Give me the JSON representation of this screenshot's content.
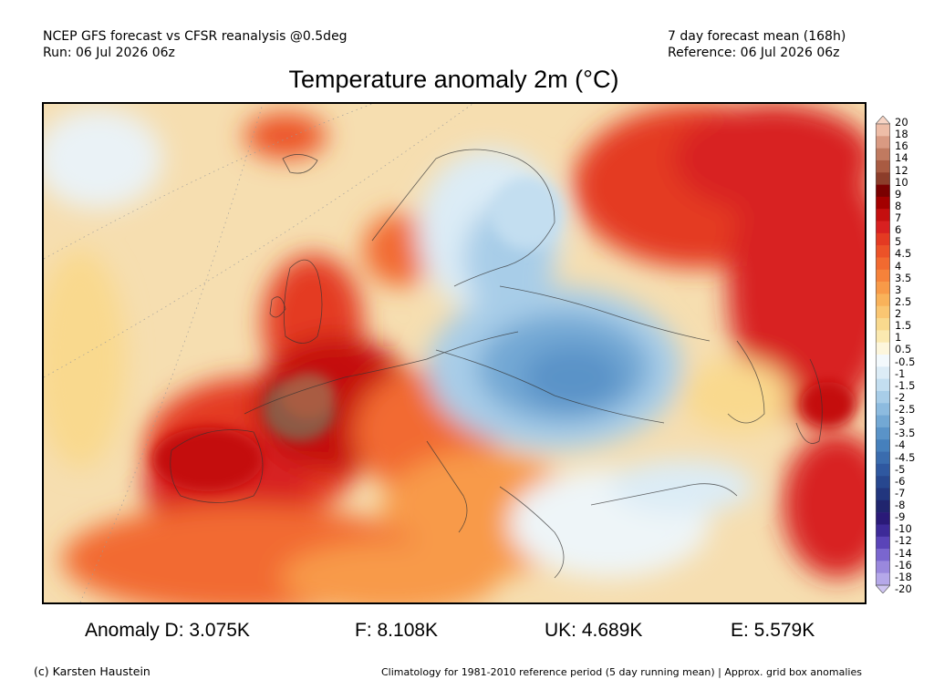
{
  "header": {
    "left_line1": "NCEP GFS forecast vs CFSR reanalysis @0.5deg",
    "left_line2": "Run: 06 Jul 2026 06z",
    "right_line1": "7 day forecast mean (168h)",
    "right_line2": "Reference: 06 Jul 2026 06z"
  },
  "title": "Temperature anomaly 2m (°C)",
  "colorbar": {
    "levels": [
      "20",
      "18",
      "16",
      "14",
      "12",
      "10",
      "9",
      "8",
      "7",
      "6",
      "5",
      "4.5",
      "4",
      "3.5",
      "3",
      "2.5",
      "2",
      "1.5",
      "1",
      "0.5",
      "-0.5",
      "-1",
      "-1.5",
      "-2",
      "-2.5",
      "-3",
      "-3.5",
      "-4",
      "-4.5",
      "-5",
      "-6",
      "-7",
      "-8",
      "-9",
      "-10",
      "-12",
      "-14",
      "-16",
      "-18",
      "-20"
    ],
    "colors": [
      "#f7d4c4",
      "#eebda7",
      "#d99a82",
      "#c07a60",
      "#a95b42",
      "#8c3d2a",
      "#7a0000",
      "#a30000",
      "#c40f0f",
      "#d82020",
      "#e43a22",
      "#ec5228",
      "#f26a30",
      "#f6823a",
      "#f89a48",
      "#f9b25a",
      "#fac672",
      "#f9d98e",
      "#fbe9b0",
      "#fdf6dc",
      "#f3f9fc",
      "#dcecf6",
      "#c3def0",
      "#a8cde8",
      "#8dbbdf",
      "#73a8d4",
      "#5a93c8",
      "#4680bc",
      "#3a6cae",
      "#2f58a0",
      "#27478f",
      "#22367e",
      "#20256e",
      "#2a1a78",
      "#3d2a98",
      "#5a44b8",
      "#7a66cf",
      "#9a88dd",
      "#b5a8e9",
      "#cfc5f2"
    ]
  },
  "stats": [
    {
      "label": "Anomaly D: 3.075K"
    },
    {
      "label": "F: 8.108K"
    },
    {
      "label": "UK: 4.689K"
    },
    {
      "label": "E: 5.579K"
    }
  ],
  "footer": {
    "credit": "(c) Karsten Haustein",
    "note": "Climatology for 1981-2010 reference period (5 day running mean) | Approx. grid box anomalies"
  },
  "map": {
    "ocean_color": "#f6deb0",
    "warm_colors": [
      "#f9b25a",
      "#f26a30",
      "#d82020",
      "#a30000",
      "#8c5a44"
    ],
    "cold_colors": [
      "#dcecf6",
      "#a8cde8",
      "#73a8d4",
      "#4f88c2"
    ],
    "border_color": "#333333"
  }
}
